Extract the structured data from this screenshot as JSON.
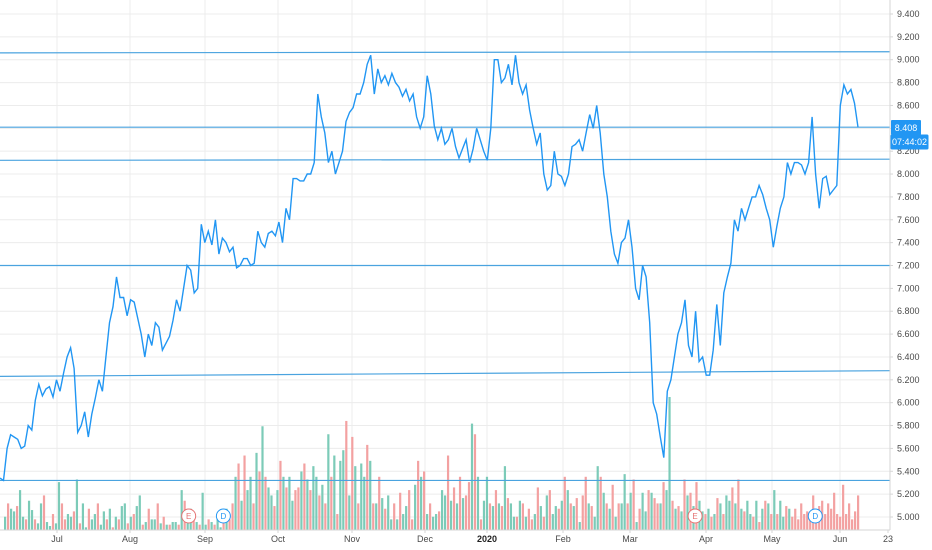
{
  "colors": {
    "price_line": "#2196f3",
    "hlines": "#4aa3df",
    "grid": "#ececec",
    "axis": "#d6d6d6",
    "volume_up": "#7ccbb8",
    "volume_down": "#f3a1a1",
    "earnings": "#e57373",
    "dividend": "#2196f3",
    "label_bg": "#2196f3"
  },
  "chart_data": {
    "type": "line",
    "ylim": [
      4.9,
      9.5
    ],
    "y_ticks": [
      "5.000",
      "5.200",
      "5.400",
      "5.600",
      "5.800",
      "6.000",
      "6.200",
      "6.400",
      "6.600",
      "6.800",
      "7.000",
      "7.200",
      "7.400",
      "7.600",
      "7.800",
      "8.000",
      "8.200",
      "8.400",
      "8.600",
      "8.800",
      "9.000",
      "9.200",
      "9.400"
    ],
    "x_ticks": [
      "Jul",
      "Aug",
      "Sep",
      "Oct",
      "Nov",
      "Dec",
      "2020",
      "Feb",
      "Mar",
      "Apr",
      "May",
      "Jun",
      "23"
    ],
    "x_ticks_bold": [
      false,
      false,
      false,
      false,
      false,
      false,
      true,
      false,
      false,
      false,
      false,
      false,
      false
    ],
    "last_price": "8.408",
    "countdown": "07:44:02",
    "horizontal_lines": [
      {
        "y_start": 9.06,
        "y_end": 9.07
      },
      {
        "y_start": 8.41,
        "y_end": 8.41
      },
      {
        "y_start": 8.12,
        "y_end": 8.13
      },
      {
        "y_start": 7.2,
        "y_end": 7.2
      },
      {
        "y_start": 6.23,
        "y_end": 6.28
      },
      {
        "y_start": 5.32,
        "y_end": 5.32
      }
    ],
    "price": [
      5.34,
      5.32,
      5.6,
      5.72,
      5.7,
      5.68,
      5.6,
      5.62,
      5.8,
      5.76,
      6.02,
      6.16,
      6.06,
      6.12,
      6.14,
      6.05,
      6.2,
      6.1,
      6.26,
      6.4,
      6.48,
      6.3,
      5.74,
      5.8,
      5.92,
      5.7,
      5.9,
      6.04,
      6.2,
      6.1,
      6.4,
      6.7,
      6.84,
      7.1,
      6.92,
      6.92,
      6.76,
      6.9,
      6.88,
      6.74,
      6.6,
      6.4,
      6.6,
      6.5,
      6.7,
      6.66,
      6.46,
      6.52,
      6.58,
      6.72,
      6.9,
      6.8,
      7.0,
      7.2,
      7.16,
      6.96,
      7.0,
      7.56,
      7.4,
      7.5,
      7.38,
      7.6,
      7.3,
      7.44,
      7.4,
      7.32,
      7.36,
      7.18,
      7.2,
      7.26,
      7.26,
      7.2,
      7.22,
      7.5,
      7.4,
      7.36,
      7.48,
      7.5,
      7.46,
      7.58,
      7.4,
      7.7,
      7.6,
      7.96,
      7.96,
      7.94,
      7.94,
      8.0,
      8.0,
      8.1,
      8.7,
      8.5,
      8.36,
      8.1,
      8.2,
      8.0,
      8.1,
      8.2,
      8.46,
      8.54,
      8.58,
      8.7,
      8.7,
      8.8,
      8.96,
      9.04,
      8.7,
      8.92,
      8.8,
      8.86,
      8.78,
      8.88,
      8.8,
      8.76,
      8.68,
      8.74,
      8.64,
      8.7,
      8.5,
      8.4,
      8.5,
      8.86,
      8.7,
      8.42,
      8.3,
      8.4,
      8.26,
      8.3,
      8.4,
      8.24,
      8.14,
      8.22,
      8.3,
      8.1,
      8.22,
      8.4,
      8.3,
      8.2,
      8.12,
      8.4,
      9.0,
      9.0,
      8.8,
      8.84,
      8.96,
      8.78,
      9.04,
      8.8,
      8.7,
      8.78,
      8.56,
      8.4,
      8.26,
      8.36,
      8.0,
      7.86,
      7.9,
      8.2,
      8.0,
      7.98,
      7.9,
      8.0,
      8.24,
      8.26,
      8.3,
      8.2,
      8.36,
      8.52,
      8.4,
      8.6,
      8.36,
      8.0,
      7.8,
      7.5,
      7.3,
      7.22,
      7.4,
      7.44,
      7.6,
      7.36,
      7.0,
      6.9,
      7.2,
      7.1,
      6.7,
      6.0,
      5.9,
      5.7,
      5.52,
      6.1,
      6.2,
      6.4,
      6.6,
      6.7,
      6.9,
      6.5,
      6.4,
      6.8,
      6.36,
      6.4,
      6.24,
      6.24,
      6.46,
      6.86,
      6.5,
      6.96,
      7.1,
      7.22,
      7.6,
      7.5,
      7.7,
      7.6,
      7.7,
      7.8,
      7.8,
      7.9,
      7.82,
      7.7,
      7.6,
      7.36,
      7.54,
      7.7,
      7.8,
      8.1,
      8.0,
      8.1,
      8.1,
      8.08,
      8.0,
      8.1,
      8.5,
      8.0,
      7.7,
      7.96,
      7.98,
      7.82,
      7.86,
      7.9,
      8.6,
      8.78,
      8.7,
      8.74,
      8.62,
      8.41
    ],
    "volume": [
      0.1,
      0.2,
      0.16,
      0.14,
      0.18,
      0.3,
      0.1,
      0.08,
      0.22,
      0.15,
      0.08,
      0.05,
      0.2,
      0.26,
      0.06,
      0.03,
      0.12,
      0.05,
      0.36,
      0.2,
      0.08,
      0.12,
      0.1,
      0.14,
      0.38,
      0.05,
      0.2,
      0.02,
      0.16,
      0.08,
      0.12,
      0.2,
      0.04,
      0.14,
      0.08,
      0.16,
      0.02,
      0.1,
      0.08,
      0.18,
      0.2,
      0.05,
      0.1,
      0.12,
      0.18,
      0.26,
      0.04,
      0.06,
      0.16,
      0.08,
      0.08,
      0.2,
      0.05,
      0.1,
      0.04,
      0.04,
      0.06,
      0.06,
      0.04,
      0.3,
      0.22,
      0.1,
      0.16,
      0.08,
      0.06,
      0.04,
      0.28,
      0.04,
      0.08,
      0.06,
      0.04,
      0.12,
      0.02,
      0.14,
      0.16,
      0.08,
      0.2,
      0.4,
      0.5,
      0.22,
      0.56,
      0.3,
      0.4,
      0.2,
      0.58,
      0.44,
      0.78,
      0.4,
      0.32,
      0.26,
      0.18,
      0.3,
      0.52,
      0.4,
      0.32,
      0.4,
      0.22,
      0.3,
      0.32,
      0.44,
      0.5,
      0.38,
      0.3,
      0.48,
      0.4,
      0.26,
      0.34,
      0.2,
      0.72,
      0.4,
      0.56,
      0.12,
      0.52,
      0.6,
      0.82,
      0.26,
      0.7,
      0.48,
      0.2,
      0.5,
      0.4,
      0.64,
      0.52,
      0.2,
      0.2,
      0.4,
      0.24,
      0.16,
      0.26,
      0.08,
      0.2,
      0.08,
      0.28,
      0.12,
      0.18,
      0.3,
      0.08,
      0.34,
      0.52,
      0.4,
      0.44,
      0.12,
      0.2,
      0.1,
      0.12,
      0.14,
      0.3,
      0.26,
      0.56,
      0.22,
      0.32,
      0.2,
      0.4,
      0.24,
      0.26,
      0.36,
      0.8,
      0.72,
      0.4,
      0.08,
      0.22,
      0.4,
      0.2,
      0.18,
      0.3,
      0.2,
      0.18,
      0.48,
      0.24,
      0.2,
      0.1,
      0.1,
      0.22,
      0.2,
      0.1,
      0.16,
      0.08,
      0.12,
      0.32,
      0.18,
      0.1,
      0.26,
      0.3,
      0.12,
      0.18,
      0.16,
      0.22,
      0.4,
      0.3,
      0.2,
      0.18,
      0.24,
      0.06,
      0.26,
      0.4,
      0.2,
      0.18,
      0.1,
      0.48,
      0.4,
      0.28,
      0.2,
      0.16,
      0.34,
      0.1,
      0.2,
      0.2,
      0.42,
      0.2,
      0.28,
      0.38,
      0.06,
      0.16,
      0.28,
      0.14,
      0.3,
      0.28,
      0.24,
      0.2,
      0.2,
      0.36,
      0.3,
      1.0,
      0.22,
      0.16,
      0.18,
      0.14,
      0.38,
      0.26,
      0.28,
      0.18,
      0.36,
      0.22,
      0.14,
      0.12,
      0.16,
      0.1,
      0.12,
      0.24,
      0.2,
      0.12,
      0.26,
      0.22,
      0.32,
      0.2,
      0.38,
      0.16,
      0.14,
      0.22,
      0.12,
      0.1,
      0.22,
      0.06,
      0.16,
      0.22,
      0.2,
      0.12,
      0.3,
      0.12,
      0.22,
      0.1,
      0.18,
      0.16,
      0.1,
      0.16,
      0.08,
      0.2,
      0.12,
      0.14,
      0.1,
      0.26,
      0.06,
      0.18,
      0.22,
      0.12,
      0.2,
      0.16,
      0.28,
      0.12,
      0.1,
      0.34,
      0.12,
      0.2,
      0.08,
      0.14,
      0.26
    ],
    "volume_up": [
      true,
      false,
      true,
      true,
      false,
      true,
      true,
      false,
      true,
      true,
      false,
      true,
      true,
      false,
      true,
      true,
      false,
      true,
      true,
      false,
      false,
      true,
      true,
      false,
      true,
      false,
      true,
      true,
      false,
      true,
      true,
      false,
      true,
      true,
      false,
      true,
      false,
      true,
      false,
      true,
      true,
      false,
      true,
      false,
      true,
      true,
      false,
      true,
      false,
      true,
      true,
      false,
      true,
      false,
      true,
      false,
      true,
      true,
      false,
      true,
      false,
      true,
      true,
      false,
      true,
      false,
      true,
      true,
      false,
      true,
      false,
      true,
      true,
      false,
      true,
      false,
      false,
      true,
      false,
      true,
      false,
      true,
      true,
      false,
      true,
      false,
      true,
      false,
      true,
      true,
      false,
      true,
      false,
      true,
      false,
      true,
      true,
      false,
      false,
      true,
      false,
      true,
      false,
      true,
      true,
      false,
      true,
      false,
      true,
      false,
      true,
      false,
      true,
      true,
      false,
      true,
      false,
      true,
      false,
      true,
      true,
      false,
      true,
      false,
      true,
      false,
      true,
      false,
      true,
      true,
      false,
      true,
      false,
      true,
      true,
      false,
      false,
      true,
      false,
      true,
      false,
      true,
      false,
      true,
      true,
      false,
      true,
      true,
      false,
      true,
      false,
      true,
      false,
      true,
      false,
      false,
      true,
      false,
      true,
      false,
      true,
      true,
      false,
      true,
      false,
      true,
      false,
      true,
      false,
      true,
      true,
      false,
      true,
      false,
      true,
      false,
      false,
      true,
      false,
      true,
      false,
      true,
      false,
      true,
      true,
      false,
      true,
      false,
      true,
      false,
      true,
      false,
      true,
      false,
      false,
      true,
      false,
      true,
      true,
      false,
      true,
      false,
      true,
      false,
      true,
      false,
      true,
      true,
      false,
      true,
      false,
      true,
      false,
      true,
      true,
      false,
      true,
      false,
      false,
      true,
      false,
      true,
      true,
      false,
      true,
      false,
      true,
      false,
      true,
      false,
      true,
      false,
      true,
      true,
      false,
      true,
      false,
      true,
      false,
      true,
      false,
      true,
      true,
      false,
      true,
      false,
      true,
      false,
      true,
      true,
      false,
      true,
      false,
      true,
      false,
      true,
      false,
      true,
      false,
      true,
      true,
      false,
      true,
      false,
      false
    ],
    "events": [
      {
        "type": "E",
        "x_frac": 0.212
      },
      {
        "type": "D",
        "x_frac": 0.251
      },
      {
        "type": "E",
        "x_frac": 0.781
      },
      {
        "type": "D",
        "x_frac": 0.916
      }
    ]
  }
}
